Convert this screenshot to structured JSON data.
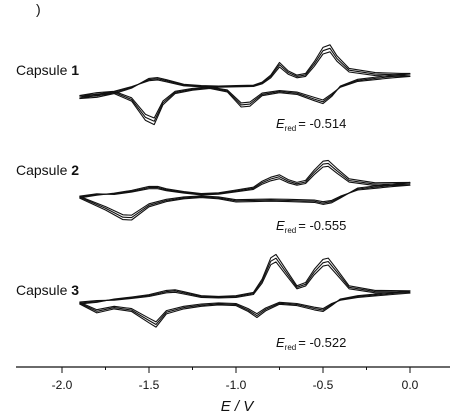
{
  "panel_marker": ")",
  "chart_data": {
    "type": "line",
    "xlabel": "E / V",
    "xlim": [
      -2.15,
      0.05
    ],
    "x_ticks": [
      "-2.0",
      "-1.5",
      "-1.0",
      "-0.5",
      "0.0"
    ],
    "x_tick_values": [
      -2.0,
      -1.5,
      -1.0,
      -0.5,
      0.0
    ],
    "stacked": true,
    "cycles_per_trace": 3,
    "series": [
      {
        "name_prefix": "Capsule ",
        "name_number": "1",
        "annotation_symbol": "E",
        "annotation_sub": "red",
        "annotation_value": "= -0.514",
        "forward": [
          [
            -1.9,
            -3.0
          ],
          [
            -1.8,
            -2.7
          ],
          [
            -1.7,
            -1.8
          ],
          [
            -1.6,
            -0.5
          ],
          [
            -1.5,
            1.8
          ],
          [
            -1.45,
            2.0
          ],
          [
            -1.4,
            1.5
          ],
          [
            -1.3,
            0.4
          ],
          [
            -1.2,
            0.1
          ],
          [
            -1.1,
            0.0
          ],
          [
            -1.0,
            0.1
          ],
          [
            -0.9,
            0.2
          ],
          [
            -0.85,
            0.9
          ],
          [
            -0.8,
            2.6
          ],
          [
            -0.75,
            5.6
          ],
          [
            -0.7,
            3.6
          ],
          [
            -0.65,
            2.6
          ],
          [
            -0.6,
            3.0
          ],
          [
            -0.55,
            5.8
          ],
          [
            -0.5,
            9.2
          ],
          [
            -0.46,
            9.8
          ],
          [
            -0.42,
            7.2
          ],
          [
            -0.35,
            4.2
          ],
          [
            -0.2,
            3.2
          ],
          [
            -0.05,
            3.0
          ],
          [
            0.0,
            3.0
          ]
        ],
        "reverse": [
          [
            0.0,
            3.0
          ],
          [
            -0.1,
            2.6
          ],
          [
            -0.3,
            1.6
          ],
          [
            -0.4,
            0.0
          ],
          [
            -0.45,
            -2.5
          ],
          [
            -0.5,
            -4.2
          ],
          [
            -0.55,
            -3.5
          ],
          [
            -0.65,
            -2.0
          ],
          [
            -0.75,
            -1.6
          ],
          [
            -0.85,
            -2.3
          ],
          [
            -0.92,
            -4.8
          ],
          [
            -0.97,
            -5.0
          ],
          [
            -1.05,
            -1.4
          ],
          [
            -1.15,
            -0.6
          ],
          [
            -1.25,
            -1.0
          ],
          [
            -1.35,
            -1.8
          ],
          [
            -1.42,
            -4.5
          ],
          [
            -1.47,
            -9.2
          ],
          [
            -1.52,
            -8.2
          ],
          [
            -1.6,
            -3.6
          ],
          [
            -1.7,
            -1.8
          ],
          [
            -1.8,
            -2.2
          ],
          [
            -1.9,
            -3.0
          ]
        ]
      },
      {
        "name_prefix": "Capsule ",
        "name_number": "2",
        "annotation_symbol": "E",
        "annotation_sub": "red",
        "annotation_value": "= -0.555",
        "forward": [
          [
            -1.9,
            -1.0
          ],
          [
            -1.8,
            -0.3
          ],
          [
            -1.7,
            0.2
          ],
          [
            -1.6,
            0.9
          ],
          [
            -1.5,
            1.9
          ],
          [
            -1.45,
            1.9
          ],
          [
            -1.4,
            1.3
          ],
          [
            -1.3,
            0.6
          ],
          [
            -1.2,
            0.1
          ],
          [
            -1.1,
            0.3
          ],
          [
            -1.0,
            1.0
          ],
          [
            -0.9,
            1.7
          ],
          [
            -0.85,
            3.2
          ],
          [
            -0.8,
            4.2
          ],
          [
            -0.75,
            4.8
          ],
          [
            -0.7,
            3.6
          ],
          [
            -0.65,
            2.9
          ],
          [
            -0.6,
            3.4
          ],
          [
            -0.55,
            6.0
          ],
          [
            -0.5,
            8.2
          ],
          [
            -0.47,
            8.4
          ],
          [
            -0.42,
            6.4
          ],
          [
            -0.35,
            3.8
          ],
          [
            -0.2,
            2.8
          ],
          [
            0.0,
            2.9
          ]
        ],
        "reverse": [
          [
            0.0,
            2.9
          ],
          [
            -0.1,
            2.5
          ],
          [
            -0.3,
            1.5
          ],
          [
            -0.4,
            -1.0
          ],
          [
            -0.45,
            -2.2
          ],
          [
            -0.5,
            -2.6
          ],
          [
            -0.55,
            -2.1
          ],
          [
            -0.7,
            -1.9
          ],
          [
            -0.8,
            -1.8
          ],
          [
            -1.0,
            -2.0
          ],
          [
            -1.1,
            -1.2
          ],
          [
            -1.2,
            -0.9
          ],
          [
            -1.3,
            -1.2
          ],
          [
            -1.4,
            -1.9
          ],
          [
            -1.5,
            -3.2
          ],
          [
            -1.6,
            -6.5
          ],
          [
            -1.65,
            -6.4
          ],
          [
            -1.75,
            -4.0
          ],
          [
            -1.85,
            -2.0
          ],
          [
            -1.9,
            -1.0
          ]
        ]
      },
      {
        "name_prefix": "Capsule ",
        "name_number": "3",
        "annotation_symbol": "E",
        "annotation_sub": "red",
        "annotation_value": "= -0.522",
        "forward": [
          [
            -1.9,
            -1.5
          ],
          [
            -1.8,
            -1.0
          ],
          [
            -1.7,
            0.0
          ],
          [
            -1.6,
            0.6
          ],
          [
            -1.5,
            1.3
          ],
          [
            -1.4,
            2.6
          ],
          [
            -1.35,
            2.8
          ],
          [
            -1.3,
            2.2
          ],
          [
            -1.2,
            1.0
          ],
          [
            -1.1,
            0.8
          ],
          [
            -1.0,
            1.0
          ],
          [
            -0.9,
            2.0
          ],
          [
            -0.85,
            6.0
          ],
          [
            -0.8,
            12.5
          ],
          [
            -0.77,
            13.5
          ],
          [
            -0.72,
            9.5
          ],
          [
            -0.65,
            4.0
          ],
          [
            -0.6,
            5.0
          ],
          [
            -0.55,
            9.0
          ],
          [
            -0.5,
            12.0
          ],
          [
            -0.47,
            12.4
          ],
          [
            -0.42,
            9.0
          ],
          [
            -0.35,
            4.0
          ],
          [
            -0.2,
            2.6
          ],
          [
            0.0,
            2.5
          ]
        ],
        "reverse": [
          [
            0.0,
            2.5
          ],
          [
            -0.1,
            2.0
          ],
          [
            -0.3,
            1.0
          ],
          [
            -0.4,
            0.0
          ],
          [
            -0.45,
            -2.0
          ],
          [
            -0.5,
            -3.8
          ],
          [
            -0.55,
            -3.3
          ],
          [
            -0.65,
            -2.0
          ],
          [
            -0.75,
            -1.6
          ],
          [
            -0.83,
            -3.6
          ],
          [
            -0.88,
            -5.6
          ],
          [
            -0.93,
            -3.8
          ],
          [
            -1.0,
            -2.0
          ],
          [
            -1.1,
            -1.8
          ],
          [
            -1.2,
            -2.2
          ],
          [
            -1.3,
            -3.0
          ],
          [
            -1.4,
            -4.5
          ],
          [
            -1.46,
            -8.5
          ],
          [
            -1.5,
            -7.2
          ],
          [
            -1.6,
            -3.8
          ],
          [
            -1.7,
            -3.0
          ],
          [
            -1.8,
            -4.2
          ],
          [
            -1.9,
            -1.5
          ]
        ]
      }
    ]
  }
}
